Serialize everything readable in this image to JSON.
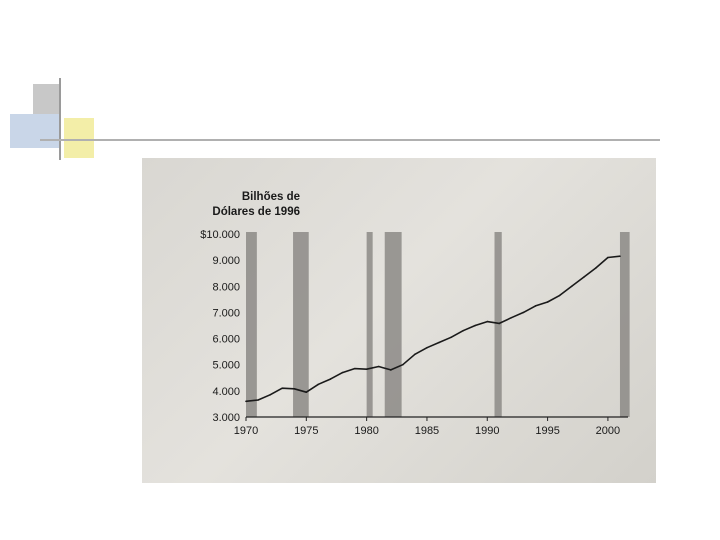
{
  "colors": {
    "accent_blue": "#c9d6e8",
    "accent_gray": "#c8c8c8",
    "accent_yellow": "#f3eea8",
    "rule_gray": "#9a9a9a",
    "recession_band": "#8c8a86",
    "series_line": "#1a1a1a"
  },
  "chart_data": {
    "type": "line",
    "ylabel": "Bilhões de Dólares de 1996",
    "ylabel_lines": [
      "Bilhões de",
      "Dólares de 1996"
    ],
    "xlabel": "",
    "xlim": [
      1970,
      2001.5
    ],
    "ylim": [
      3000,
      10000
    ],
    "x_ticks": [
      1970,
      1975,
      1980,
      1985,
      1990,
      1995,
      2000
    ],
    "y_ticks": [
      {
        "value": 10000,
        "label": "$10.000"
      },
      {
        "value": 9000,
        "label": "9.000"
      },
      {
        "value": 8000,
        "label": "8.000"
      },
      {
        "value": 7000,
        "label": "7.000"
      },
      {
        "value": 6000,
        "label": "6.000"
      },
      {
        "value": 5000,
        "label": "5.000"
      },
      {
        "value": 4000,
        "label": "4.000"
      },
      {
        "value": 3000,
        "label": "3.000"
      }
    ],
    "shaded_periods": [
      {
        "start": 1970.0,
        "end": 1970.9
      },
      {
        "start": 1973.9,
        "end": 1975.2
      },
      {
        "start": 1980.0,
        "end": 1980.5
      },
      {
        "start": 1981.5,
        "end": 1982.9
      },
      {
        "start": 1990.6,
        "end": 1991.2
      },
      {
        "start": 2001.0,
        "end": 2001.8
      }
    ],
    "series": [
      {
        "x": [
          1970,
          1971,
          1972,
          1973,
          1974,
          1975,
          1976,
          1977,
          1978,
          1979,
          1980,
          1981,
          1982,
          1983,
          1984,
          1985,
          1986,
          1987,
          1988,
          1989,
          1990,
          1991,
          1992,
          1993,
          1994,
          1995,
          1996,
          1997,
          1998,
          1999,
          2000,
          2001
        ],
        "values": [
          3600,
          3650,
          3850,
          4100,
          4080,
          3950,
          4250,
          4450,
          4700,
          4850,
          4830,
          4930,
          4800,
          5000,
          5400,
          5650,
          5850,
          6050,
          6300,
          6500,
          6650,
          6580,
          6800,
          7000,
          7250,
          7400,
          7650,
          8000,
          8350,
          8700,
          9100,
          9150
        ]
      }
    ]
  }
}
